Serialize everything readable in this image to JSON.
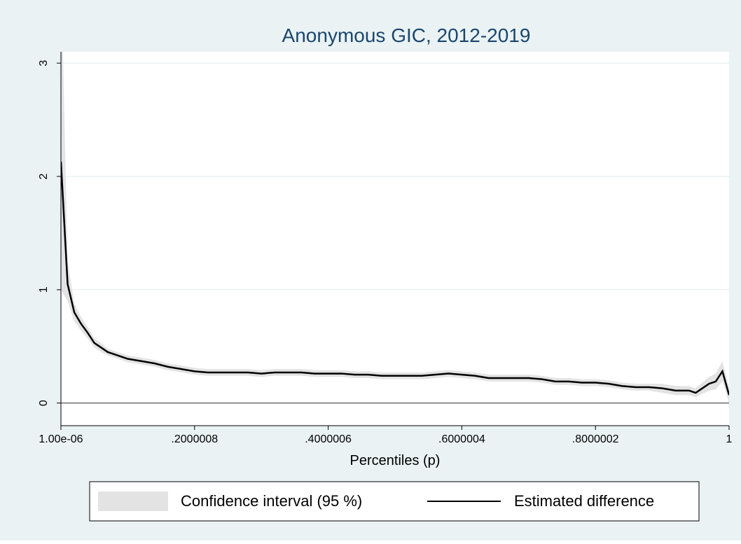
{
  "chart_data": {
    "type": "line",
    "title": "Anonymous GIC, 2012-2019",
    "x_label": "Percentiles (p)",
    "x": [
      1e-06,
      0.01,
      0.02,
      0.03,
      0.04,
      0.05,
      0.06,
      0.07,
      0.08,
      0.09,
      0.1,
      0.12,
      0.14,
      0.16,
      0.18,
      0.2,
      0.22,
      0.24,
      0.26,
      0.28,
      0.3,
      0.32,
      0.34,
      0.36,
      0.38,
      0.4,
      0.42,
      0.44,
      0.46,
      0.48,
      0.5,
      0.52,
      0.54,
      0.56,
      0.58,
      0.6,
      0.62,
      0.64,
      0.66,
      0.68,
      0.7,
      0.72,
      0.74,
      0.76,
      0.78,
      0.8,
      0.82,
      0.84,
      0.86,
      0.88,
      0.9,
      0.92,
      0.94,
      0.95,
      0.97,
      0.98,
      0.99,
      1
    ],
    "series": [
      {
        "name": "Confidence interval (95 %)",
        "color": "#e3e3e3",
        "lower": [
          1.0,
          0.9,
          0.72,
          0.64,
          0.57,
          0.49,
          0.45,
          0.42,
          0.4,
          0.38,
          0.36,
          0.34,
          0.32,
          0.29,
          0.27,
          0.25,
          0.24,
          0.24,
          0.24,
          0.24,
          0.23,
          0.24,
          0.24,
          0.24,
          0.23,
          0.23,
          0.23,
          0.22,
          0.22,
          0.21,
          0.21,
          0.21,
          0.21,
          0.22,
          0.23,
          0.22,
          0.21,
          0.19,
          0.19,
          0.19,
          0.19,
          0.18,
          0.16,
          0.16,
          0.15,
          0.15,
          0.14,
          0.12,
          0.11,
          0.11,
          0.09,
          0.07,
          0.07,
          0.05,
          0.11,
          0.12,
          0.19,
          0.0
        ],
        "upper": [
          3.9,
          1.25,
          0.88,
          0.76,
          0.67,
          0.57,
          0.53,
          0.48,
          0.46,
          0.44,
          0.42,
          0.4,
          0.38,
          0.35,
          0.33,
          0.31,
          0.3,
          0.3,
          0.3,
          0.3,
          0.29,
          0.3,
          0.3,
          0.3,
          0.29,
          0.29,
          0.29,
          0.28,
          0.28,
          0.27,
          0.27,
          0.27,
          0.27,
          0.28,
          0.29,
          0.28,
          0.27,
          0.25,
          0.25,
          0.25,
          0.25,
          0.24,
          0.22,
          0.22,
          0.21,
          0.21,
          0.2,
          0.18,
          0.17,
          0.17,
          0.17,
          0.15,
          0.15,
          0.13,
          0.23,
          0.26,
          0.37,
          0.14
        ]
      },
      {
        "name": "Estimated difference",
        "color": "#000000",
        "values": [
          2.13,
          1.05,
          0.8,
          0.7,
          0.62,
          0.53,
          0.49,
          0.45,
          0.43,
          0.41,
          0.39,
          0.37,
          0.35,
          0.32,
          0.3,
          0.28,
          0.27,
          0.27,
          0.27,
          0.27,
          0.26,
          0.27,
          0.27,
          0.27,
          0.26,
          0.26,
          0.26,
          0.25,
          0.25,
          0.24,
          0.24,
          0.24,
          0.24,
          0.25,
          0.26,
          0.25,
          0.24,
          0.22,
          0.22,
          0.22,
          0.22,
          0.21,
          0.19,
          0.19,
          0.18,
          0.18,
          0.17,
          0.15,
          0.14,
          0.14,
          0.13,
          0.11,
          0.11,
          0.09,
          0.17,
          0.19,
          0.28,
          0.07
        ]
      }
    ],
    "xlim": [
      1e-06,
      1
    ],
    "ylim": [
      -0.2,
      3.1
    ],
    "xticks": [
      {
        "value": 1e-06,
        "label": "1.00e-06"
      },
      {
        "value": 0.2000008,
        "label": ".2000008"
      },
      {
        "value": 0.4000006,
        "label": ".4000006"
      },
      {
        "value": 0.6000004,
        "label": ".6000004"
      },
      {
        "value": 0.8000002,
        "label": ".8000002"
      },
      1
    ],
    "yticks": [
      0,
      1,
      2,
      3
    ],
    "grid": true,
    "legend": "bottom"
  }
}
